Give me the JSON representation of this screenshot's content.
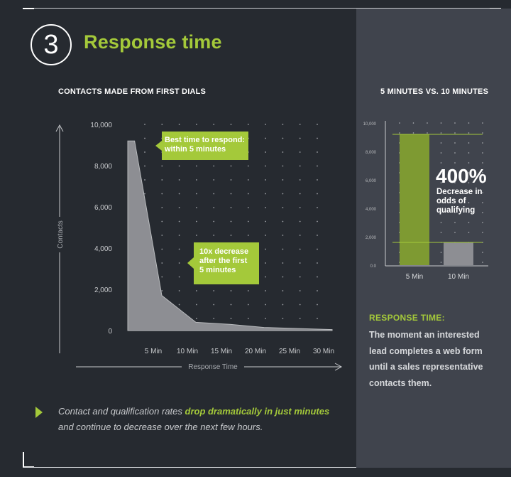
{
  "header": {
    "number": "3",
    "title": "Response time"
  },
  "colors": {
    "accent": "#a4c93a",
    "background": "#262a30",
    "panel": "#40444d",
    "area": "#8d8e93"
  },
  "chart_data": [
    {
      "type": "area",
      "title": "CONTACTS MADE FROM FIRST DIALS",
      "xlabel": "Response Time",
      "ylabel": "Contacts",
      "x": [
        0,
        1,
        5,
        10,
        15,
        20,
        25,
        30
      ],
      "values": [
        9200,
        9200,
        1700,
        400,
        300,
        150,
        100,
        50
      ],
      "xticks": [
        "5 Min",
        "10 Min",
        "15 Min",
        "20 Min",
        "25 Min",
        "30 Min"
      ],
      "yticks": [
        "10,000",
        "8,000",
        "6,000",
        "4,000",
        "2,000",
        "0"
      ],
      "ylim": [
        0,
        10000
      ],
      "grid": "dotted",
      "annotations": [
        {
          "lines": [
            "Best time to respond:",
            "within 5 minutes"
          ]
        },
        {
          "lines": [
            "10x decrease",
            "after the first",
            "5 minutes"
          ]
        }
      ]
    },
    {
      "type": "bar",
      "title": "5 MINUTES VS. 10 MINUTES",
      "categories": [
        "5 Min",
        "10 Min"
      ],
      "values": [
        9200,
        1600
      ],
      "yticks": [
        "10,000",
        "8,000",
        "6,000",
        "4,000",
        "2,000",
        "0.0"
      ],
      "ylim": [
        0,
        10000
      ],
      "bar_colors": [
        "#7e9a32",
        "#8d8e93"
      ],
      "annotation": {
        "big": "400%",
        "lines": [
          "Decrease in",
          "odds of",
          "qualifying"
        ]
      }
    }
  ],
  "response_time": {
    "heading": "RESPONSE TIME:",
    "body": "The moment an interested lead completes a web form until a sales representative contacts them."
  },
  "footer": {
    "pre": "Contact and qualification rates ",
    "emphasis": "drop dramatically in just minutes",
    "post": " and continue to decrease over the next few hours."
  }
}
